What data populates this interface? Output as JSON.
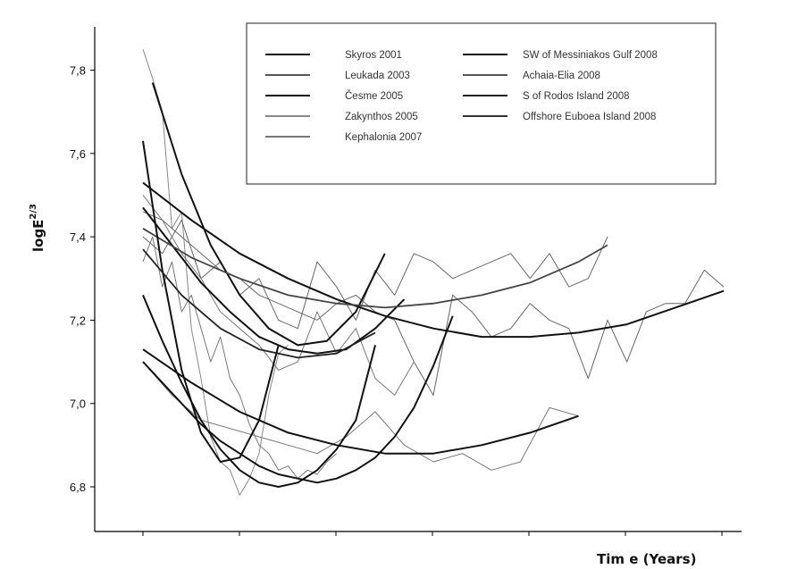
{
  "chart_data": {
    "type": "line",
    "title": "",
    "xlabel": "Tim e (Years)",
    "ylabel": "logE",
    "ylabel_superscript": "2/3",
    "ylim": [
      6.7,
      7.9
    ],
    "yticks": [
      "6,8",
      "7,0",
      "7,2",
      "7,4",
      "7,6",
      "7,8"
    ],
    "ytick_values": [
      6.8,
      7.0,
      7.2,
      7.4,
      7.6,
      7.8
    ],
    "xlim": [
      -0.55,
      6.0
    ],
    "xticks_labeled": false,
    "legend_position": "top-right",
    "legend": [
      {
        "label": "Skyros 2001",
        "color": "#111111"
      },
      {
        "label": "Leukada 2003",
        "color": "#555555"
      },
      {
        "label": "Česme 2005",
        "color": "#111111"
      },
      {
        "label": "Zakynthos 2005",
        "color": "#888888"
      },
      {
        "label": "Kephalonia 2007",
        "color": "#777777"
      },
      {
        "label": "SW of Messiniakos Gulf 2008",
        "color": "#111111"
      },
      {
        "label": "Achaia-Elia 2008",
        "color": "#555555"
      },
      {
        "label": "S of Rodos Island 2008",
        "color": "#222222"
      },
      {
        "label": "Offshore Euboea Island 2008",
        "color": "#333333"
      }
    ],
    "series": [
      {
        "kind": "fit",
        "color": "#111111",
        "width": 2.0,
        "x": [
          0.0,
          0.2,
          0.4,
          0.6,
          0.8,
          1.0,
          1.2,
          1.4,
          1.6,
          1.8,
          2.0,
          2.2,
          2.4
        ],
        "y": [
          7.26,
          7.15,
          7.05,
          6.96,
          6.89,
          6.84,
          6.81,
          6.8,
          6.81,
          6.84,
          6.89,
          6.96,
          7.14
        ]
      },
      {
        "kind": "fit",
        "color": "#111111",
        "width": 2.0,
        "x": [
          0.0,
          0.2,
          0.4,
          0.6,
          0.8,
          1.0,
          1.2,
          1.4,
          1.6,
          1.8,
          2.0,
          2.2,
          2.4,
          2.6,
          2.8,
          3.0,
          3.2
        ],
        "y": [
          7.1,
          7.05,
          7.0,
          6.95,
          6.91,
          6.88,
          6.85,
          6.83,
          6.82,
          6.81,
          6.82,
          6.84,
          6.87,
          6.92,
          6.99,
          7.09,
          7.21
        ]
      },
      {
        "kind": "fit",
        "color": "#111111",
        "width": 2.0,
        "x": [
          0.0,
          0.5,
          1.0,
          1.5,
          2.0,
          2.5,
          3.0,
          3.5,
          4.0,
          4.5
        ],
        "y": [
          7.13,
          7.05,
          6.98,
          6.93,
          6.9,
          6.88,
          6.88,
          6.9,
          6.93,
          6.97
        ]
      },
      {
        "kind": "fit",
        "color": "#111111",
        "width": 2.0,
        "x": [
          0.1,
          0.4,
          0.7,
          1.0,
          1.3,
          1.6,
          1.9,
          2.2,
          2.5
        ],
        "y": [
          7.77,
          7.55,
          7.38,
          7.26,
          7.18,
          7.14,
          7.15,
          7.22,
          7.36
        ]
      },
      {
        "kind": "fit",
        "color": "#111111",
        "width": 2.0,
        "x": [
          0.0,
          0.3,
          0.6,
          0.9,
          1.2,
          1.5,
          1.8,
          2.1,
          2.4,
          2.7
        ],
        "y": [
          7.47,
          7.38,
          7.29,
          7.22,
          7.16,
          7.13,
          7.12,
          7.13,
          7.18,
          7.25
        ]
      },
      {
        "kind": "fit",
        "color": "#111111",
        "width": 2.0,
        "x": [
          0.0,
          0.5,
          1.0,
          1.5,
          2.0,
          2.5,
          3.0,
          3.5,
          4.0,
          4.5,
          5.0,
          5.5,
          6.0
        ],
        "y": [
          7.53,
          7.44,
          7.36,
          7.3,
          7.25,
          7.21,
          7.18,
          7.16,
          7.16,
          7.17,
          7.19,
          7.23,
          7.27
        ]
      },
      {
        "kind": "fit",
        "color": "#444444",
        "width": 1.8,
        "x": [
          0.0,
          0.5,
          1.0,
          1.5,
          2.0,
          2.5,
          3.0,
          3.5,
          4.0,
          4.5,
          4.8
        ],
        "y": [
          7.42,
          7.35,
          7.3,
          7.26,
          7.24,
          7.23,
          7.24,
          7.26,
          7.29,
          7.34,
          7.38
        ]
      },
      {
        "kind": "fit",
        "color": "#111111",
        "width": 2.0,
        "x": [
          0.0,
          0.2,
          0.4,
          0.6,
          0.8,
          1.0,
          1.2,
          1.4
        ],
        "y": [
          7.63,
          7.32,
          7.08,
          6.93,
          6.86,
          6.87,
          6.96,
          7.14
        ]
      },
      {
        "kind": "fit",
        "color": "#222222",
        "width": 1.8,
        "x": [
          0.0,
          0.4,
          0.8,
          1.2,
          1.6,
          2.0,
          2.4
        ],
        "y": [
          7.37,
          7.26,
          7.18,
          7.13,
          7.11,
          7.12,
          7.17
        ]
      },
      {
        "kind": "data",
        "color": "#888888",
        "width": 1.0,
        "x": [
          0.0,
          0.1,
          0.2,
          0.3,
          0.4,
          0.5,
          0.6,
          0.7,
          0.8,
          0.9,
          1.0,
          1.1,
          1.2,
          1.3,
          1.4,
          1.5
        ],
        "y": [
          7.85,
          7.78,
          7.7,
          7.42,
          7.46,
          7.18,
          7.06,
          6.92,
          6.86,
          6.84,
          6.78,
          6.82,
          6.88,
          7.02,
          7.12,
          7.14
        ]
      },
      {
        "kind": "data",
        "color": "#777777",
        "width": 1.0,
        "x": [
          0.0,
          0.1,
          0.2,
          0.3,
          0.4,
          0.5,
          0.6,
          0.7,
          0.8,
          0.9,
          1.0,
          1.1,
          1.2,
          1.3,
          1.4,
          1.5,
          1.6,
          1.7,
          1.8,
          1.9,
          2.0
        ],
        "y": [
          7.34,
          7.4,
          7.28,
          7.34,
          7.22,
          7.26,
          7.18,
          7.1,
          7.16,
          7.06,
          7.02,
          6.95,
          6.9,
          6.88,
          6.84,
          6.85,
          6.82,
          6.84,
          6.83,
          6.86,
          6.88
        ]
      },
      {
        "kind": "data",
        "color": "#666666",
        "width": 1.0,
        "x": [
          0.0,
          0.2,
          0.4,
          0.6,
          0.8,
          1.0,
          1.2,
          1.4,
          1.6,
          1.8,
          2.0,
          2.2,
          2.4,
          2.6,
          2.8,
          3.0,
          3.2,
          3.4,
          3.6,
          3.8,
          4.0,
          4.2,
          4.4,
          4.6,
          4.8
        ],
        "y": [
          7.4,
          7.36,
          7.44,
          7.3,
          7.34,
          7.26,
          7.3,
          7.2,
          7.18,
          7.34,
          7.28,
          7.2,
          7.32,
          7.26,
          7.36,
          7.34,
          7.3,
          7.32,
          7.34,
          7.36,
          7.3,
          7.36,
          7.28,
          7.3,
          7.4
        ]
      },
      {
        "kind": "data",
        "color": "#666666",
        "width": 1.0,
        "x": [
          0.0,
          0.2,
          0.4,
          0.6,
          0.8,
          1.0,
          1.2,
          1.4,
          1.6,
          1.8,
          2.0,
          2.2,
          2.4,
          2.6,
          2.8,
          3.0,
          3.2,
          3.4,
          3.6,
          3.8,
          4.0,
          4.2,
          4.4,
          4.6,
          4.8,
          5.0,
          5.2,
          5.4,
          5.6,
          5.8,
          6.0
        ],
        "y": [
          7.46,
          7.44,
          7.4,
          7.36,
          7.32,
          7.3,
          7.26,
          7.24,
          7.22,
          7.2,
          7.24,
          7.26,
          7.22,
          7.2,
          7.1,
          7.02,
          7.26,
          7.22,
          7.16,
          7.18,
          7.24,
          7.2,
          7.18,
          7.06,
          7.2,
          7.1,
          7.22,
          7.24,
          7.24,
          7.32,
          7.28
        ]
      },
      {
        "kind": "data",
        "color": "#777777",
        "width": 1.0,
        "x": [
          0.0,
          0.3,
          0.6,
          0.9,
          1.2,
          1.5,
          1.8,
          2.1,
          2.4,
          2.7,
          3.0,
          3.3,
          3.6,
          3.9,
          4.2,
          4.5
        ],
        "y": [
          7.1,
          7.02,
          6.96,
          6.94,
          6.92,
          6.9,
          6.88,
          6.92,
          6.98,
          6.9,
          6.86,
          6.88,
          6.84,
          6.86,
          6.99,
          6.97
        ]
      },
      {
        "kind": "data",
        "color": "#777777",
        "width": 1.0,
        "x": [
          0.0,
          0.2,
          0.4,
          0.6,
          0.8,
          1.0,
          1.2,
          1.4,
          1.6,
          1.8,
          2.0,
          2.2,
          2.4,
          2.6,
          2.8
        ],
        "y": [
          7.5,
          7.44,
          7.36,
          7.3,
          7.22,
          7.18,
          7.14,
          7.08,
          7.1,
          7.22,
          7.12,
          7.18,
          7.06,
          7.02,
          7.1
        ]
      }
    ]
  }
}
